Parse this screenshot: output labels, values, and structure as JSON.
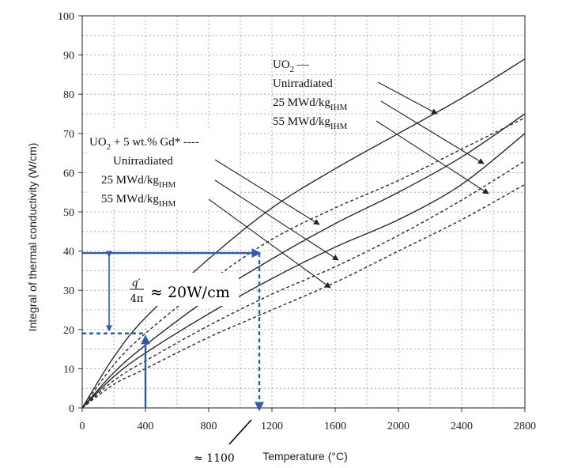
{
  "chart_data": {
    "type": "line",
    "xlabel": "Temperature (°C)",
    "ylabel": "Integral of thermal conductivity (W/cm)",
    "xlim": [
      0,
      2800
    ],
    "ylim": [
      0,
      100
    ],
    "xticks": [
      "0",
      "400",
      "800",
      "1200",
      "1600",
      "2000",
      "2400",
      "2800"
    ],
    "yticks": [
      "0",
      "10",
      "20",
      "30",
      "40",
      "50",
      "60",
      "70",
      "80",
      "90",
      "100"
    ],
    "grid": true,
    "legend": {
      "uo2_header": "UO",
      "uo2_header_sub": "2",
      "uo2_header_tail": " —",
      "gd_header": "UO",
      "gd_header_sub": "2",
      "gd_header_tail": " + 5 wt.% Gd* ----",
      "unirradiated": "Unirradiated",
      "burnup_25": "25 MWd/kg",
      "burnup_55": "55 MWd/kg",
      "burnup_sub": "IHM"
    },
    "series": [
      {
        "style": "solid",
        "x": [
          0,
          200,
          400,
          800,
          1200,
          1600,
          2000,
          2400,
          2800
        ],
        "y": [
          0,
          13,
          23,
          38,
          51,
          61,
          70,
          79,
          89
        ]
      },
      {
        "style": "solid",
        "x": [
          0,
          200,
          400,
          800,
          1200,
          1600,
          2000,
          2400,
          2800
        ],
        "y": [
          0,
          9,
          16,
          28,
          38,
          47,
          55,
          64,
          75
        ]
      },
      {
        "style": "solid",
        "x": [
          0,
          200,
          400,
          800,
          1200,
          1600,
          2000,
          2400,
          2800
        ],
        "y": [
          0,
          8,
          14,
          24,
          33,
          41,
          48,
          57,
          70
        ]
      },
      {
        "style": "dashed",
        "x": [
          0,
          200,
          400,
          800,
          1200,
          1600,
          2000,
          2400,
          2800
        ],
        "y": [
          0,
          11,
          19,
          32,
          43,
          51,
          58,
          66,
          74
        ]
      },
      {
        "style": "dashed",
        "x": [
          0,
          200,
          400,
          800,
          1200,
          1600,
          2000,
          2400,
          2800
        ],
        "y": [
          0,
          7,
          12,
          21,
          29,
          36,
          44,
          53,
          63
        ]
      },
      {
        "style": "dashed",
        "x": [
          0,
          200,
          400,
          800,
          1200,
          1600,
          2000,
          2400,
          2800
        ],
        "y": [
          0,
          6,
          10,
          18,
          25,
          32,
          40,
          48,
          57
        ]
      }
    ],
    "annotations": {
      "q_num": "q′",
      "q_den": "4π",
      "q_value": "≈ 20W/cm",
      "temp_value": "≈ 1100",
      "input_temperature": 400,
      "input_integral": 19,
      "output_integral": 39.5,
      "output_temperature": 1100
    }
  }
}
